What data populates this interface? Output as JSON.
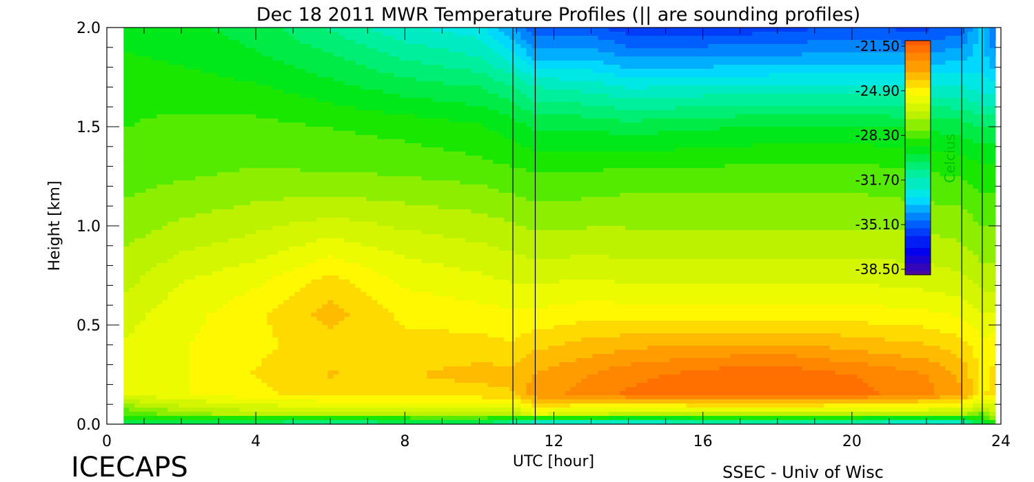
{
  "chart_data": {
    "type": "heatmap",
    "title": "Dec 18 2011 MWR Temperature Profiles (|| are sounding profiles)",
    "xlabel": "UTC [hour]",
    "ylabel": "Height [km]",
    "xlim": [
      0,
      24
    ],
    "ylim": [
      0,
      2
    ],
    "x_ticks": [
      "0",
      "4",
      "8",
      "12",
      "16",
      "20",
      "24"
    ],
    "y_ticks": [
      "0.0",
      "0.5",
      "1.0",
      "1.5",
      "2.0"
    ],
    "data_x_range": [
      0.45,
      23.85
    ],
    "colorbar": {
      "label": "Celcius",
      "range": [
        -38.5,
        -21.5
      ],
      "tick_labels": [
        "-21.50",
        "-24.90",
        "-28.30",
        "-31.70",
        "-35.10",
        "-38.50"
      ]
    },
    "sounding_times_utc": [
      10.9,
      11.5,
      22.95,
      23.5
    ],
    "x_grid": [
      0.45,
      2,
      4,
      6,
      8,
      10,
      10.9,
      11.5,
      13,
      14,
      16,
      18,
      19,
      20,
      22,
      22.95,
      23.5,
      23.85
    ],
    "y_grid": [
      0.0,
      0.05,
      0.15,
      0.25,
      0.4,
      0.55,
      0.7,
      0.9,
      1.1,
      1.3,
      1.5,
      1.7,
      1.85,
      2.0
    ],
    "temperature_c": [
      [
        -30,
        -30.5,
        -31,
        -31.5,
        -31,
        -30.5,
        -32,
        -33,
        -33,
        -33,
        -32.5,
        -32.5,
        -32.5,
        -32.5,
        -33,
        -33,
        -30,
        -28.5
      ],
      [
        -28.5,
        -27.5,
        -27,
        -27,
        -27,
        -27,
        -27,
        -26,
        -26.5,
        -27,
        -27,
        -27,
        -27,
        -27,
        -27,
        -27,
        -28,
        -27
      ],
      [
        -26,
        -25.5,
        -25,
        -24.5,
        -24.5,
        -24.5,
        -24.3,
        -23.2,
        -22.8,
        -22.3,
        -22,
        -21.9,
        -22,
        -22.2,
        -22.8,
        -23.5,
        -25,
        -24.5
      ],
      [
        -26,
        -25.5,
        -24.8,
        -24.2,
        -24.3,
        -24,
        -24,
        -23.6,
        -23,
        -22.6,
        -22.2,
        -21.8,
        -22.2,
        -22.4,
        -23,
        -23.8,
        -25,
        -24.7
      ],
      [
        -26,
        -25.5,
        -25,
        -24.5,
        -24.6,
        -24.6,
        -24.8,
        -24.4,
        -24,
        -23.8,
        -23.6,
        -23.6,
        -23.7,
        -23.9,
        -24.2,
        -24.6,
        -25.3,
        -25
      ],
      [
        -26.3,
        -25.7,
        -25,
        -24,
        -25,
        -25.2,
        -25.3,
        -25.3,
        -25,
        -25.1,
        -25.1,
        -25.1,
        -25.1,
        -25.1,
        -25.3,
        -25.5,
        -26,
        -26
      ],
      [
        -26.8,
        -26,
        -25.5,
        -24.5,
        -25.5,
        -25.8,
        -26,
        -26,
        -25.9,
        -26,
        -26,
        -26,
        -26,
        -26,
        -26.2,
        -26.4,
        -26.8,
        -26.8
      ],
      [
        -27.3,
        -26.8,
        -26.4,
        -25.8,
        -26.3,
        -26.6,
        -26.8,
        -27,
        -26.9,
        -27,
        -27,
        -27,
        -27,
        -27,
        -27,
        -27.2,
        -27.6,
        -27.6
      ],
      [
        -27.8,
        -27.5,
        -27.2,
        -27,
        -27.2,
        -27.4,
        -27.6,
        -27.8,
        -27.7,
        -27.6,
        -27.6,
        -27.6,
        -27.6,
        -27.6,
        -27.8,
        -27.9,
        -28.2,
        -28.2
      ],
      [
        -28.2,
        -28.1,
        -27.9,
        -28,
        -28.1,
        -28.3,
        -28.5,
        -28.6,
        -28.6,
        -28.5,
        -28.5,
        -28.4,
        -28.4,
        -28.4,
        -28.6,
        -28.7,
        -29,
        -29
      ],
      [
        -28.5,
        -28.3,
        -28.3,
        -28.5,
        -28.7,
        -29,
        -29.4,
        -29.8,
        -29.8,
        -30,
        -29.8,
        -29.6,
        -29.6,
        -29.6,
        -29.8,
        -30,
        -30.3,
        -30.2
      ],
      [
        -28.7,
        -28.8,
        -29,
        -29.5,
        -30,
        -30.3,
        -30.8,
        -31.5,
        -31.8,
        -32.2,
        -32,
        -32,
        -32,
        -32,
        -32,
        -32,
        -32.5,
        -32.5
      ],
      [
        -29,
        -29.2,
        -29.6,
        -30.2,
        -31,
        -31.5,
        -32.5,
        -33.5,
        -33.5,
        -34,
        -34,
        -33.8,
        -33.8,
        -33.8,
        -33.8,
        -33.5,
        -33,
        -34
      ],
      [
        -29.5,
        -29.5,
        -30,
        -31,
        -32,
        -32.5,
        -34,
        -35,
        -35,
        -35.5,
        -35.5,
        -35.5,
        -35.2,
        -35.2,
        -35.3,
        -34.8,
        -33,
        -35
      ]
    ]
  },
  "branding": {
    "left": "ICECAPS",
    "right": "SSEC - Univ of Wisc"
  },
  "colors": {
    "scale": [
      "#4b0a9e",
      "#0000f0",
      "#0064ff",
      "#00e6ff",
      "#00f08c",
      "#00e600",
      "#b4f000",
      "#ffff00",
      "#ffa000",
      "#ff5a00"
    ]
  }
}
